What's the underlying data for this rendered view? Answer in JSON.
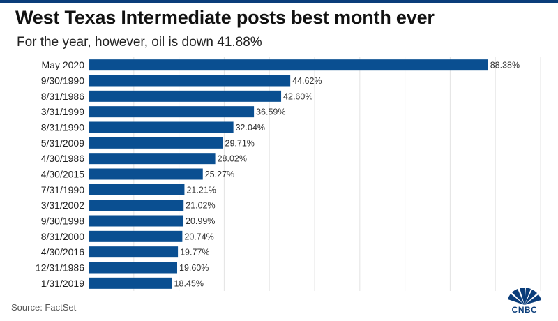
{
  "header": {
    "title": "West Texas Intermediate posts best month ever",
    "subtitle": "For the year, however, oil is down 41.88%"
  },
  "footer": {
    "source": "Source: FactSet",
    "brand": "CNBC"
  },
  "colors": {
    "bar": "#0a4f91",
    "grid": "#e3e3e3",
    "accent": "#0a3d7a"
  },
  "chart_data": {
    "type": "bar",
    "orientation": "horizontal",
    "title": "West Texas Intermediate posts best month ever",
    "subtitle": "For the year, however, oil is down 41.88%",
    "xlabel": "",
    "ylabel": "",
    "xlim": [
      0,
      100
    ],
    "grid": true,
    "legend": "none",
    "categories": [
      "May 2020",
      "9/30/1990",
      "8/31/1986",
      "3/31/1999",
      "8/31/1990",
      "5/31/2009",
      "4/30/1986",
      "4/30/2015",
      "7/31/1990",
      "3/31/2002",
      "9/30/1998",
      "8/31/2000",
      "4/30/2016",
      "12/31/1986",
      "1/31/2019"
    ],
    "values": [
      88.38,
      44.62,
      42.6,
      36.59,
      32.04,
      29.71,
      28.02,
      25.27,
      21.21,
      21.02,
      20.99,
      20.74,
      19.77,
      19.6,
      18.45
    ],
    "value_labels": [
      "88.38%",
      "44.62%",
      "42.60%",
      "36.59%",
      "32.04%",
      "29.71%",
      "28.02%",
      "25.27%",
      "21.21%",
      "21.02%",
      "20.99%",
      "20.74%",
      "19.77%",
      "19.60%",
      "18.45%"
    ]
  }
}
